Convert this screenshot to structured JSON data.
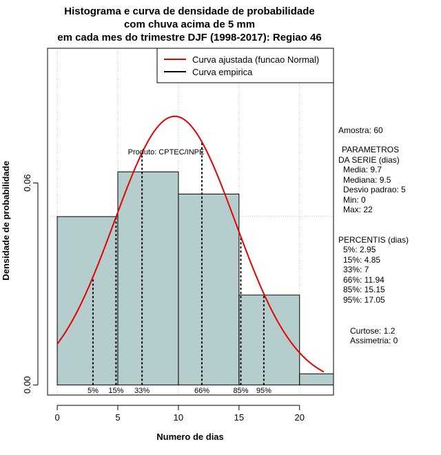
{
  "chart_data": {
    "type": "bar",
    "title_lines": [
      "Histograma e curva de densidade de probabilidade",
      "com chuva acima de 5 mm",
      "em cada mes do trimestre DJF (1998-2017): Regiao 46"
    ],
    "xlabel": "Numero de dias",
    "ylabel": "Densidade de probabilidade",
    "xlim": [
      -0.8,
      22.8
    ],
    "ylim": [
      -0.003,
      0.1
    ],
    "x_ticks": [
      0,
      5,
      10,
      15,
      20
    ],
    "y_ticks": [
      0.0,
      0.06
    ],
    "y_tick_labels": [
      "0.00",
      "0.06"
    ],
    "grid_x": [
      0,
      5,
      10,
      15,
      20
    ],
    "grid_y": [
      0.05,
      0.1
    ],
    "bins": [
      {
        "start": 0,
        "end": 5,
        "density": 0.05
      },
      {
        "start": 5,
        "end": 10,
        "density": 0.0633
      },
      {
        "start": 10,
        "end": 15,
        "density": 0.0567
      },
      {
        "start": 15,
        "end": 20,
        "density": 0.0267
      },
      {
        "start": 20,
        "end": 22.8,
        "density": 0.0033
      }
    ],
    "bar_color": "#b6cdcd",
    "normal_curve": {
      "mean": 9.7,
      "sd": 5.0,
      "x_from": 0,
      "x_to": 22,
      "color": "#e60000"
    },
    "percentiles": [
      {
        "label": "5%",
        "value": 2.95
      },
      {
        "label": "15%",
        "value": 4.85
      },
      {
        "label": "33%",
        "value": 7
      },
      {
        "label": "66%",
        "value": 11.94
      },
      {
        "label": "85%",
        "value": 15.15
      },
      {
        "label": "95%",
        "value": 17.05
      }
    ],
    "legend": [
      {
        "label": "Curva ajustada (funcao Normal)",
        "color": "#e60000"
      },
      {
        "label": "Curva empirica",
        "color": "#000000"
      }
    ],
    "credit": "Produto: CPTEC/INPE"
  },
  "side_panel": {
    "sample": "Amostra: 60",
    "params_header_1": "PARAMETROS",
    "params_header_2": "DA SERIE (dias)",
    "params": [
      "Media: 9.7",
      "Mediana: 9.5",
      "Desvio padrao: 5",
      "Min: 0",
      "Max: 22"
    ],
    "percentis_header": "PERCENTIS (dias)",
    "percentis": [
      "5%: 2.95",
      "15%: 4.85",
      "33%: 7",
      "66%: 11.94",
      "85%: 15.15",
      "95%: 17.05"
    ],
    "shape": [
      "Curtose: 1.2",
      "Assimetria: 0"
    ]
  }
}
